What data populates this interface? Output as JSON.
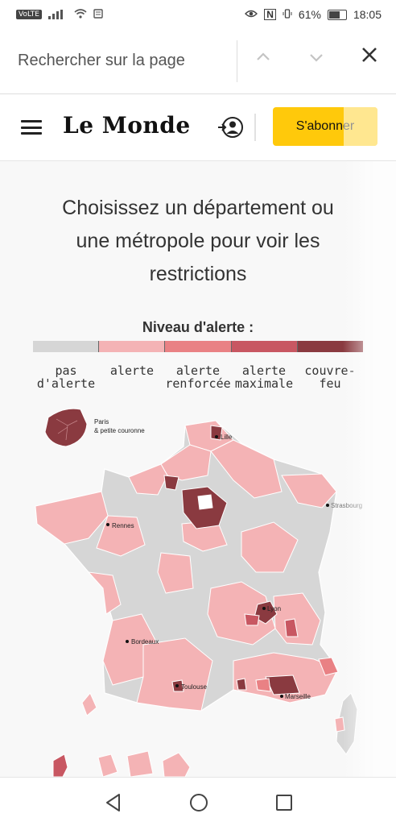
{
  "status_bar": {
    "volte": "VoLTE",
    "battery": "61%",
    "time": "18:05"
  },
  "find_bar": {
    "placeholder": "Rechercher sur la page"
  },
  "header": {
    "logo": "Le Monde",
    "subscribe_label": "S'abonner"
  },
  "main": {
    "heading_line1": "Choisissez un département ou",
    "heading_line2": "une métropole pour voir les",
    "heading_line3": "restrictions",
    "legend": {
      "title": "Niveau d'alerte :",
      "levels": [
        {
          "label_1": "pas",
          "label_2": "d'alerte",
          "color": "#d6d6d6"
        },
        {
          "label_1": "alerte",
          "label_2": "",
          "color": "#f4b3b5"
        },
        {
          "label_1": "alerte",
          "label_2": "renforcée",
          "color": "#e98184"
        },
        {
          "label_1": "alerte",
          "label_2": "maximale",
          "color": "#c85762"
        },
        {
          "label_1": "couvre-",
          "label_2": "feu",
          "color": "#8a3a40"
        }
      ]
    },
    "map": {
      "inset_label_1": "Paris",
      "inset_label_2": "& petite couronne",
      "cities": [
        "Lille",
        "Strasbourg",
        "Rennes",
        "Lyon",
        "Bordeaux",
        "Toulouse",
        "Marseille"
      ]
    }
  },
  "colors": {
    "accent_subscribe": "#ffc90b"
  }
}
